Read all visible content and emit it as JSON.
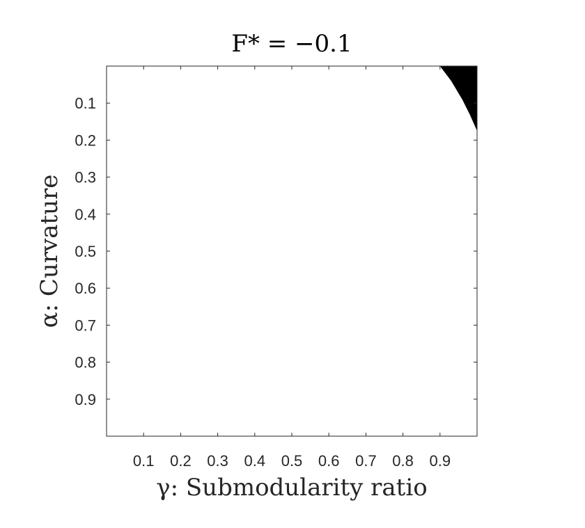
{
  "chart_data": {
    "type": "heatmap",
    "title": "F* = −0.1",
    "xlabel": "γ: Submodularity ratio",
    "ylabel": "α: Curvature",
    "x_ticks": [
      0.1,
      0.2,
      0.3,
      0.4,
      0.5,
      0.6,
      0.7,
      0.8,
      0.9
    ],
    "x_tick_labels": [
      "0.1",
      "0.2",
      "0.3",
      "0.4",
      "0.5",
      "0.6",
      "0.7",
      "0.8",
      "0.9"
    ],
    "y_ticks": [
      0.1,
      0.2,
      0.3,
      0.4,
      0.5,
      0.6,
      0.7,
      0.8,
      0.9
    ],
    "y_tick_labels": [
      "0.1",
      "0.2",
      "0.3",
      "0.4",
      "0.5",
      "0.6",
      "0.7",
      "0.8",
      "0.9"
    ],
    "xlim": [
      0,
      1
    ],
    "ylim": [
      0,
      1
    ],
    "y_reversed": true,
    "grid": false,
    "background_color": "#ffffff",
    "region_color": "#000000",
    "region_boundary": [
      {
        "x": 0.9,
        "y": 0.0
      },
      {
        "x": 1.0,
        "y": 0.0
      },
      {
        "x": 1.0,
        "y": 0.175
      }
    ],
    "region_boundary_curve": [
      {
        "x": 0.9,
        "y": 0.0
      },
      {
        "x": 0.93,
        "y": 0.04
      },
      {
        "x": 0.96,
        "y": 0.09
      },
      {
        "x": 0.98,
        "y": 0.13
      },
      {
        "x": 1.0,
        "y": 0.175
      }
    ]
  }
}
